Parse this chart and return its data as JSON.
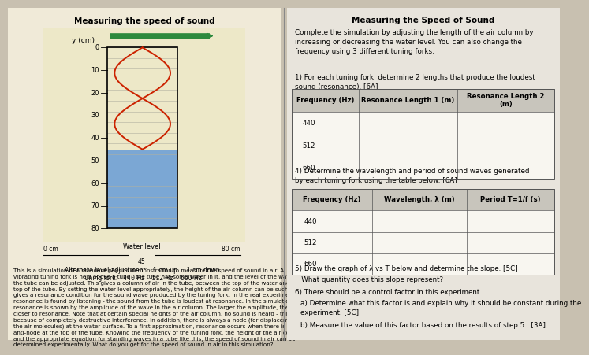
{
  "left_title": "Measuring the speed of sound",
  "right_title": "Measuring the Speed of Sound",
  "right_intro": "Complete the simulation by adjusting the length of the air column by\nincreasing or decreasing the water level. You can also change the\nfrequency using 3 different tuning forks.",
  "q1_text": "1) For each tuning fork, determine 2 lengths that produce the loudest\nsound (resonance). [6A]",
  "table1_headers": [
    "Frequency (Hz)",
    "Resonance Length 1 (m)",
    "Resonance Length 2\n(m)"
  ],
  "table1_rows": [
    "440",
    "512",
    "660"
  ],
  "q4_text": "4) Determine the wavelength and period of sound waves generated\nby each tuning fork using the table below: [6A]",
  "table2_headers": [
    "Frequency (Hz)",
    "Wavelength, λ (m)",
    "Period T=1/f (s)"
  ],
  "table2_rows": [
    "440",
    "512",
    "660"
  ],
  "q5_text": "5) Draw the graph of λ vs T below and determine the slope. [5C]",
  "q5b_text": "   What quantity does this slope represent?",
  "q6_text": "6) There should be a control factor in this experiment.",
  "q6a_text": "a) Determine what this factor is and explain why it should be constant during the\nexperiment. [5C]",
  "q6b_text": "b) Measure the value of this factor based on the results of step 5.  [3A]",
  "ylabel": "y (cm)",
  "water_label": "Water level",
  "alt_label": "Alternate level adjustment:   1 cm up     1 cm down",
  "tuning_label": "Tuning fork:   440 Hz    512 Hz    660 Hz",
  "desc": "This is a simulation of a standard physics demonstration to measure the speed of sound in air. A\nvibrating tuning fork is held above a tube - the tube has some water in it, and the level of the water in\nthe tube can be adjusted. This gives a column of air in the tube, between the top of the water and the\ntop of the tube. By setting the water level appropriately, the height of the air column can be such that it\ngives a resonance condition for the sound wave produced by the tuning fork. In the real experiment,\nresonance is found by listening - the sound from the tube is loudest at resonance. In the simulation,\nresonance is shown by the amplitude of the wave in the air column. The larger the amplitude, the\ncloser to resonance. Note that at certain special heights of the air column, no sound is heard - this is\nbecause of completely destructive interference. In addition, there is always a node (for displacement of\nthe air molecules) at the water surface. To a first approximation, resonance occurs when there is an\nanti-node at the top of the tube. Knowing the frequency of the tuning fork, the height of the air column,\nand the appropriate equation for standing waves in a tube like this, the speed of sound in air can be\ndetermined experimentally. What do you get for the speed of sound in air in this simulation?",
  "bg_left": "#f0ead8",
  "bg_right": "#e8e4dc",
  "water_color": "#7ba7d4",
  "wave_color": "#cc2200",
  "fork_color": "#2d8a3e",
  "grid_color": "#b0b0a0"
}
